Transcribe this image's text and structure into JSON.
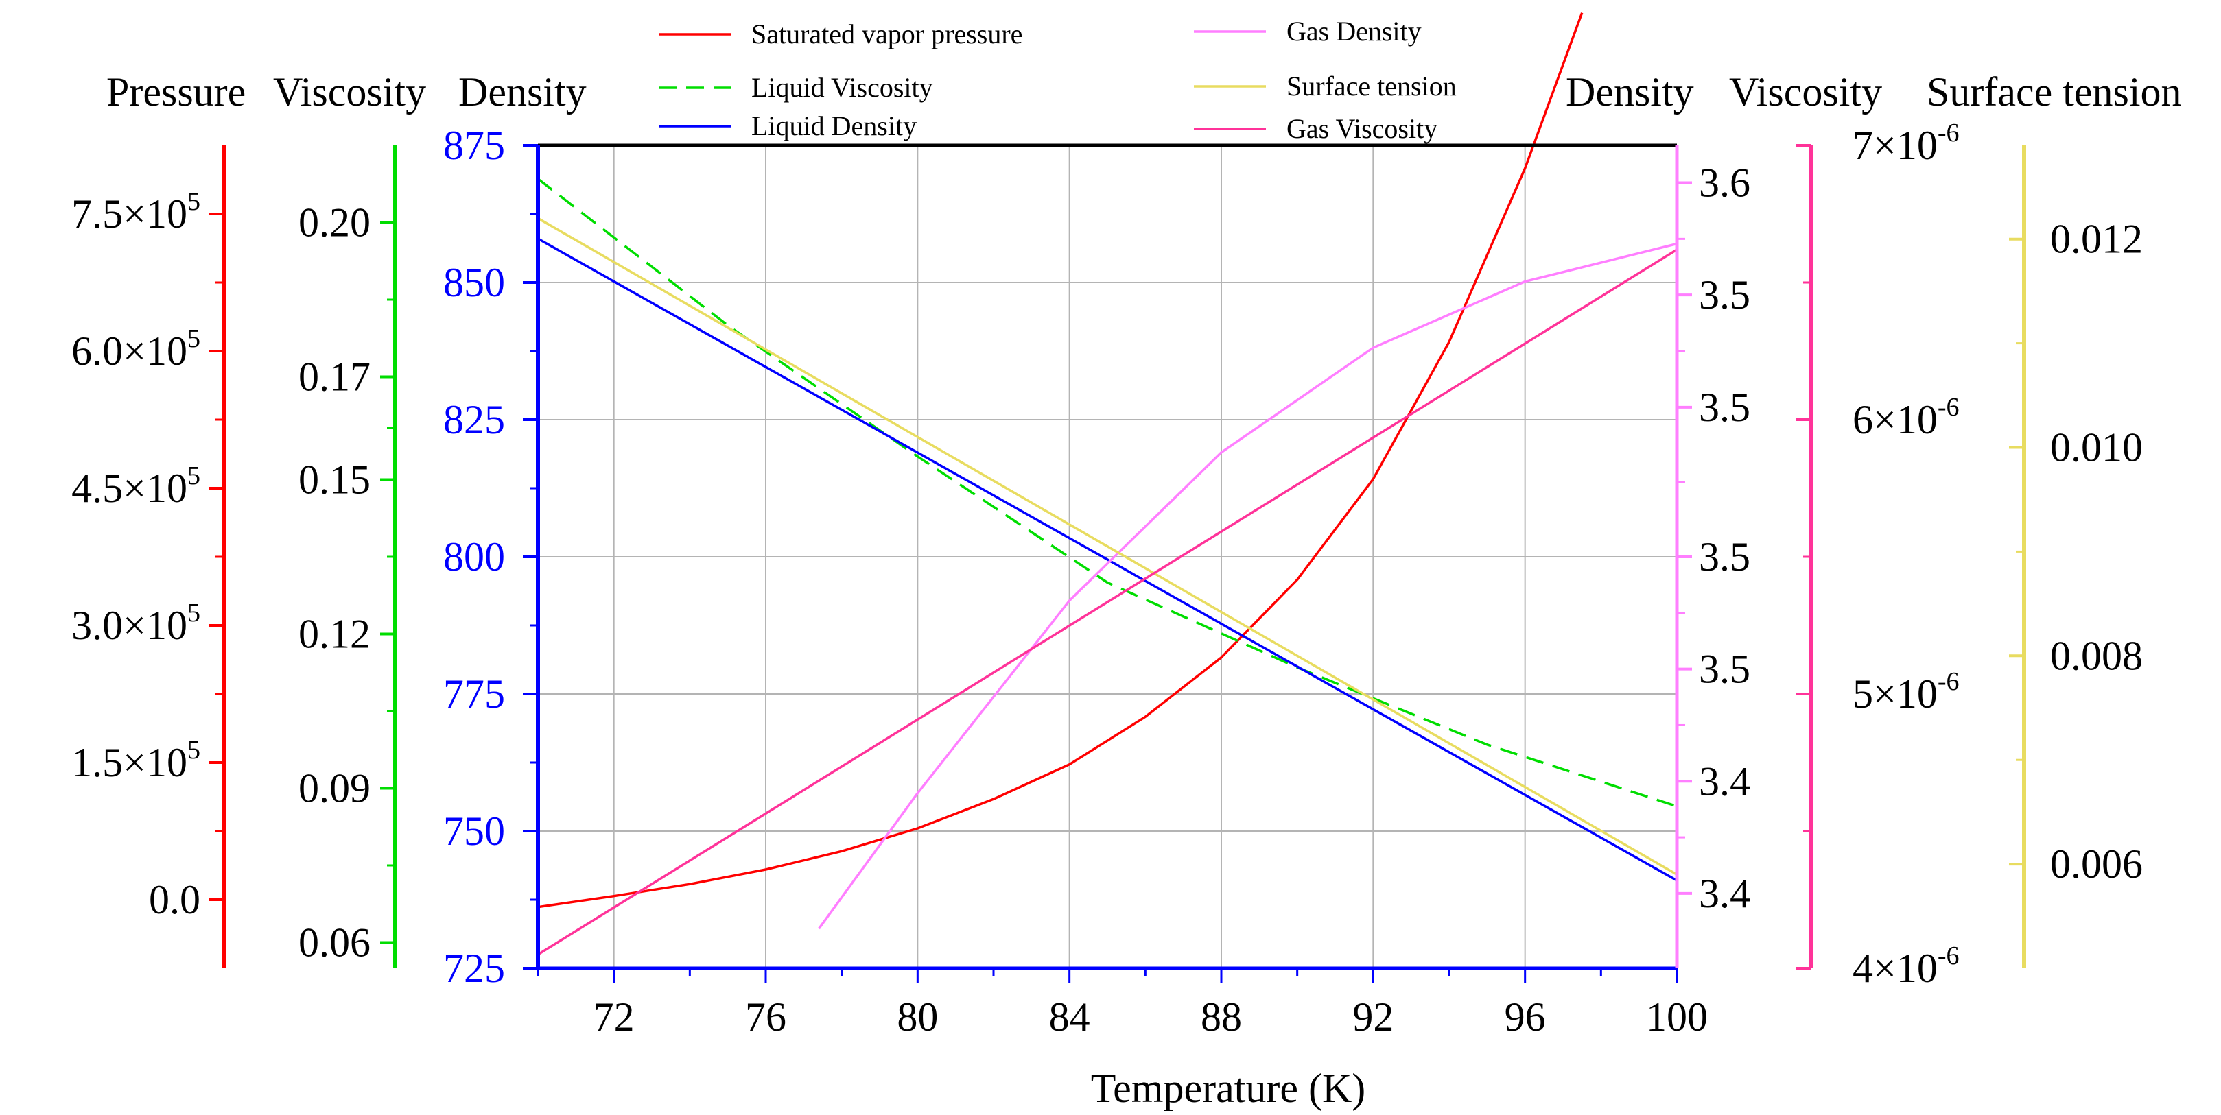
{
  "chart_data": {
    "type": "line",
    "xlabel": "Temperature (K)",
    "x_axis": {
      "range": [
        70,
        100
      ],
      "ticks": [
        72,
        76,
        80,
        84,
        88,
        92,
        96,
        100
      ],
      "tick_labels": [
        "72",
        "76",
        "80",
        "84",
        "88",
        "92",
        "96",
        "100"
      ]
    },
    "axes": {
      "pressure": {
        "title": "Pressure",
        "color": "#ff0000",
        "range": [
          -75000,
          825000
        ],
        "ticks": [
          0,
          150000,
          300000,
          450000,
          600000,
          750000
        ],
        "tick_labels": [
          "0.0",
          "1.5×10",
          "3.0×10",
          "4.5×10",
          "6.0×10",
          "7.5×10"
        ],
        "tick_exponents": [
          "",
          "5",
          "5",
          "5",
          "5",
          "5"
        ]
      },
      "liquid_viscosity": {
        "title": "Viscosity",
        "color": "#00dd00",
        "range": [
          0.055,
          0.215
        ],
        "ticks": [
          0.06,
          0.09,
          0.12,
          0.15,
          0.17,
          0.2
        ],
        "tick_labels": [
          "0.06",
          "0.09",
          "0.12",
          "0.15",
          "0.17",
          "0.20"
        ]
      },
      "liquid_density": {
        "title": "Density",
        "color": "#0000ff",
        "range": [
          725,
          875
        ],
        "ticks": [
          725,
          750,
          775,
          800,
          825,
          850,
          875
        ],
        "tick_labels": [
          "725",
          "750",
          "775",
          "800",
          "825",
          "850",
          "875"
        ]
      },
      "gas_density": {
        "title": "Density",
        "color": "#ff7fff",
        "range": [
          3.37,
          3.59
        ],
        "ticks": [
          3.39,
          3.42,
          3.45,
          3.48,
          3.52,
          3.55,
          3.58
        ],
        "tick_labels": [
          "3.4",
          "3.4",
          "3.5",
          "3.5",
          "3.5",
          "3.5",
          "3.6"
        ]
      },
      "gas_viscosity": {
        "title": "Viscosity",
        "color": "#ff3399",
        "range": [
          4e-06,
          7e-06
        ],
        "ticks": [
          4e-06,
          5e-06,
          6e-06,
          7e-06
        ],
        "tick_labels": [
          "4×10",
          "5×10",
          "6×10",
          "7×10"
        ],
        "tick_exponents": [
          "-6",
          "-6",
          "-6",
          "-6"
        ]
      },
      "surface_tension": {
        "title": "Surface tension",
        "color": "#e8dc60",
        "range": [
          0.005,
          0.0129
        ],
        "ticks": [
          0.006,
          0.008,
          0.01,
          0.012
        ],
        "tick_labels": [
          "0.006",
          "0.008",
          "0.010",
          "0.012"
        ]
      }
    },
    "series": [
      {
        "name": "Saturated vapor pressure",
        "axis": "pressure",
        "color": "#ff0000",
        "dash": false,
        "x": [
          70,
          72,
          74,
          76,
          78,
          80,
          82,
          84,
          86,
          88,
          90,
          92,
          94,
          96,
          97.5
        ],
        "values": [
          -8000,
          4000,
          17000,
          33000,
          53000,
          78000,
          110000,
          148000,
          200000,
          265000,
          350000,
          460000,
          610000,
          800000,
          970000
        ]
      },
      {
        "name": "Liquid Viscosity",
        "axis": "liquid_viscosity",
        "color": "#00dd00",
        "dash": true,
        "x": [
          70,
          75,
          80,
          85,
          90,
          95,
          100
        ],
        "values": [
          0.2085,
          0.18,
          0.1545,
          0.13,
          0.1135,
          0.0985,
          0.0865
        ]
      },
      {
        "name": "Liquid Density",
        "axis": "liquid_density",
        "color": "#0000ff",
        "dash": false,
        "x": [
          70,
          100
        ],
        "values": [
          858,
          741
        ]
      },
      {
        "name": "Gas Density",
        "axis": "gas_density",
        "color": "#ff7fff",
        "dash": false,
        "x": [
          77.4,
          80,
          84,
          88,
          92,
          96,
          100
        ],
        "values": [
          3.3806,
          3.4168,
          3.4683,
          3.5079,
          3.5359,
          3.5536,
          3.5637
        ]
      },
      {
        "name": "Surface tension",
        "axis": "surface_tension",
        "color": "#e8dc60",
        "dash": false,
        "x": [
          70,
          100
        ],
        "values": [
          0.0122,
          0.0059
        ]
      },
      {
        "name": "Gas Viscosity",
        "axis": "gas_viscosity",
        "color": "#ff3399",
        "dash": false,
        "x": [
          70,
          100
        ],
        "values": [
          4.05e-06,
          6.62e-06
        ]
      }
    ],
    "legend": {
      "placement": "top",
      "entries": [
        "Saturated vapor pressure",
        "Liquid Viscosity",
        "Liquid Density",
        "Gas Density",
        "Surface tension",
        "Gas Viscosity"
      ]
    },
    "grid": true
  }
}
